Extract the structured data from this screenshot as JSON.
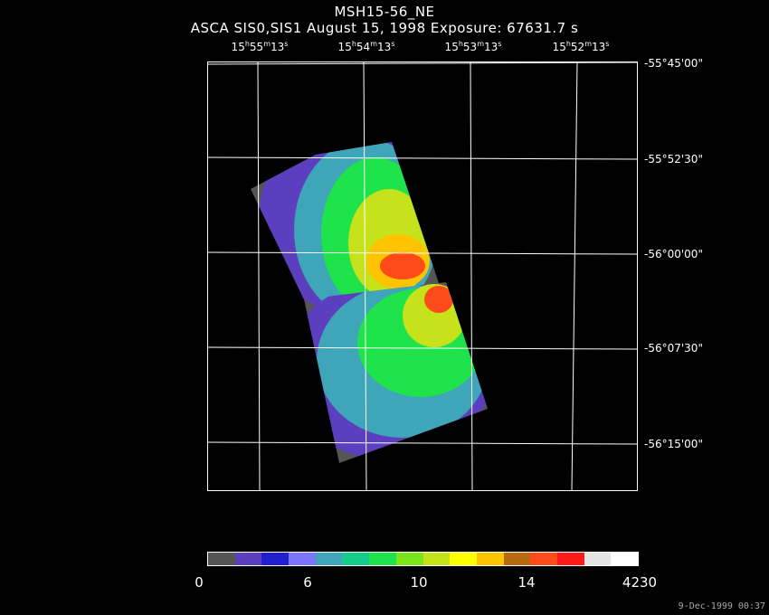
{
  "title": "MSH15-56_NE",
  "subtitle": "ASCA SIS0,SIS1 August 15, 1998 Exposure: 67631.7 s",
  "ra_ticks": [
    {
      "h": "15",
      "m": "55",
      "s": "13"
    },
    {
      "h": "15",
      "m": "54",
      "s": "13"
    },
    {
      "h": "15",
      "m": "53",
      "s": "13"
    },
    {
      "h": "15",
      "m": "52",
      "s": "13"
    }
  ],
  "dec_ticks": [
    "-55°45'00\"",
    "-55°52'30\"",
    "-56°00'00\"",
    "-56°07'30\"",
    "-56°15'00\""
  ],
  "colorbar": {
    "colors": [
      "#555555",
      "#5b3fbf",
      "#1f1fd0",
      "#7c74ff",
      "#3fa5b8",
      "#16cc8a",
      "#1fe34a",
      "#7be51a",
      "#c6e21a",
      "#ffff00",
      "#ffc400",
      "#b86a10",
      "#ff4a1a",
      "#ff1a1a",
      "#e5e5e5",
      "#ffffff"
    ],
    "labels": [
      "0",
      "6",
      "10",
      "14",
      "4230"
    ]
  },
  "timestamp": "9-Dec-1999 00:37"
}
